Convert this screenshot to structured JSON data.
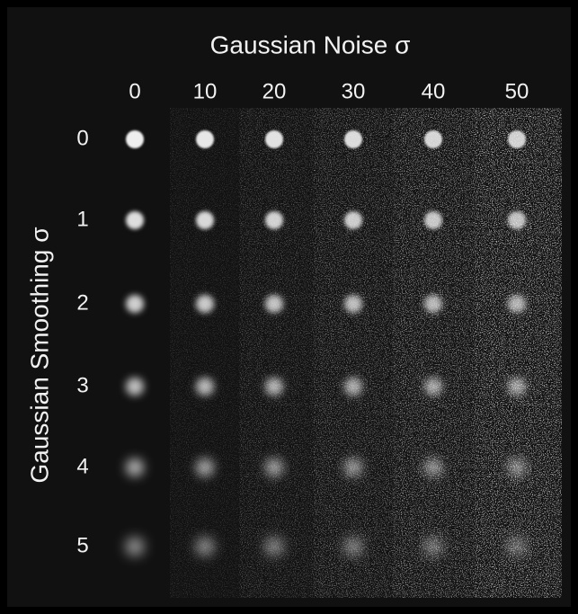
{
  "figure": {
    "title": "Gaussian Noise  σ",
    "y_label": "Gaussian Smoothing  σ",
    "noise_levels": [
      0,
      10,
      20,
      30,
      40,
      50
    ],
    "smoothing_levels": [
      0,
      1,
      2,
      3,
      4,
      5
    ]
  }
}
